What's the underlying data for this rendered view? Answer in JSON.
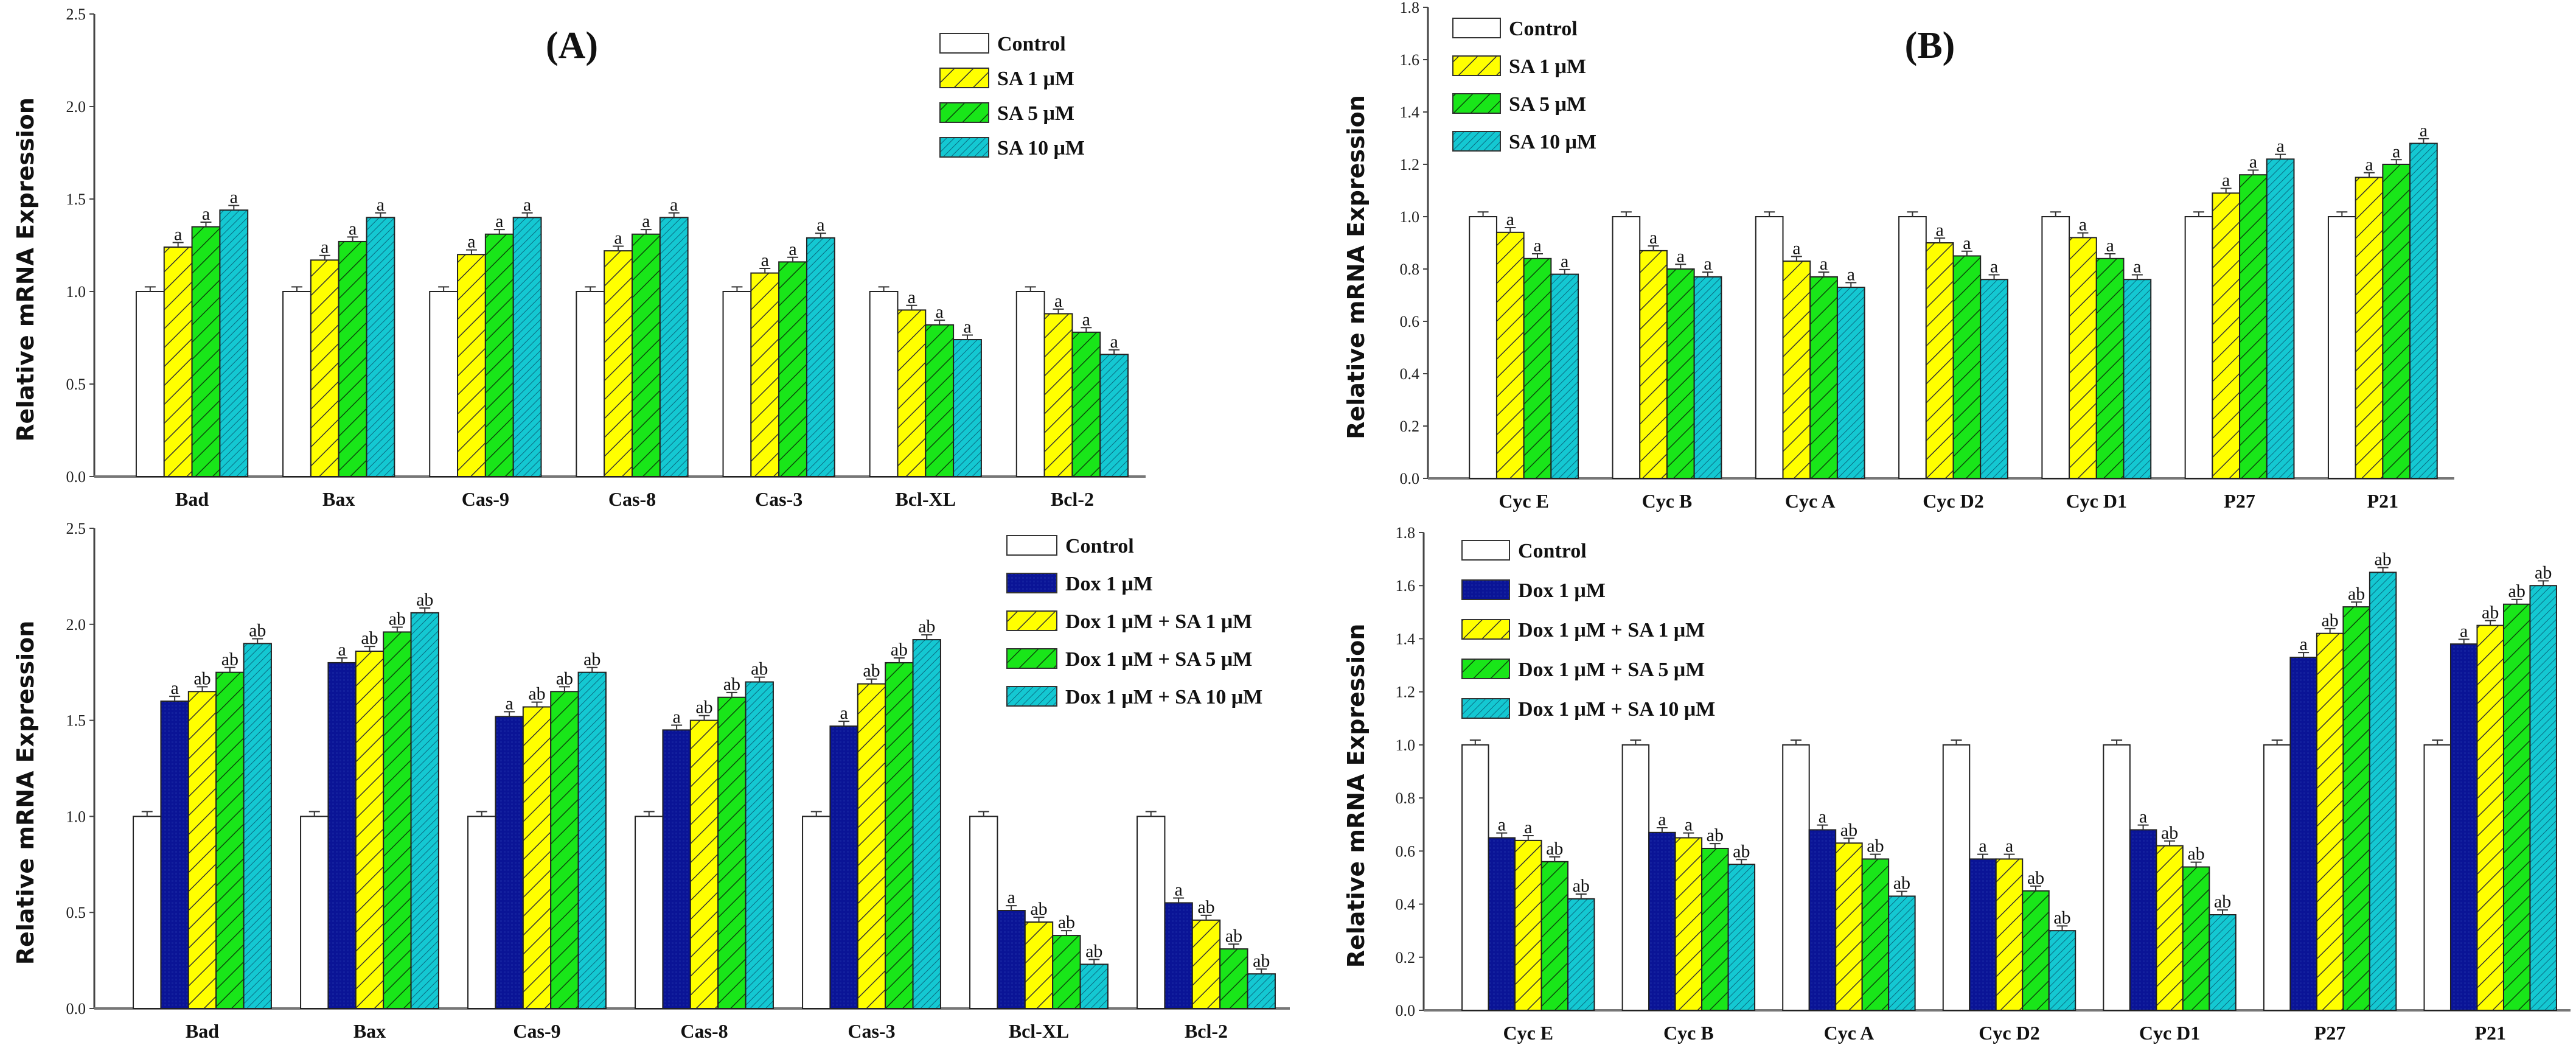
{
  "colors": {
    "control": "#ffffff",
    "dox": "#0a1496",
    "sa1": "#ffff00",
    "sa5": "#19e619",
    "sa10": "#14c8d2"
  },
  "chart_data": [
    {
      "type": "bar",
      "panel": "A-top",
      "title": "(A)",
      "ylabel": "Relative mRNA Expression",
      "xlabel": "",
      "ylim": [
        0,
        2.5
      ],
      "yticks": [
        "0.0",
        "0.5",
        "1.0",
        "1.5",
        "2.0",
        "2.5"
      ],
      "legend_position": "top-right",
      "categories": [
        "Bad",
        "Bax",
        "Cas-9",
        "Cas-8",
        "Cas-3",
        "Bcl-XL",
        "Bcl-2"
      ],
      "series": [
        {
          "name": "Control",
          "color_key": "control",
          "values": [
            1.0,
            1.0,
            1.0,
            1.0,
            1.0,
            1.0,
            1.0
          ],
          "labels": [
            "",
            "",
            "",
            "",
            "",
            "",
            ""
          ]
        },
        {
          "name": "SA 1 μM",
          "color_key": "sa1",
          "values": [
            1.24,
            1.17,
            1.2,
            1.22,
            1.1,
            0.9,
            0.88
          ],
          "labels": [
            "a",
            "a",
            "a",
            "a",
            "a",
            "a",
            "a"
          ]
        },
        {
          "name": "SA 5 μM",
          "color_key": "sa5",
          "values": [
            1.35,
            1.27,
            1.31,
            1.31,
            1.16,
            0.82,
            0.78
          ],
          "labels": [
            "a",
            "a",
            "a",
            "a",
            "a",
            "a",
            "a"
          ]
        },
        {
          "name": "SA 10 μM",
          "color_key": "sa10",
          "values": [
            1.44,
            1.4,
            1.4,
            1.4,
            1.29,
            0.74,
            0.66
          ],
          "labels": [
            "a",
            "a",
            "a",
            "a",
            "a",
            "a",
            "a"
          ]
        }
      ]
    },
    {
      "type": "bar",
      "panel": "A-bottom",
      "title": "",
      "ylabel": "Relative mRNA Expression",
      "xlabel": "",
      "ylim": [
        0,
        2.5
      ],
      "yticks": [
        "0.0",
        "0.5",
        "1.0",
        "1.5",
        "2.0",
        "2.5"
      ],
      "legend_position": "top-right",
      "categories": [
        "Bad",
        "Bax",
        "Cas-9",
        "Cas-8",
        "Cas-3",
        "Bcl-XL",
        "Bcl-2"
      ],
      "series": [
        {
          "name": "Control",
          "color_key": "control",
          "values": [
            1.0,
            1.0,
            1.0,
            1.0,
            1.0,
            1.0,
            1.0
          ],
          "labels": [
            "",
            "",
            "",
            "",
            "",
            "",
            ""
          ]
        },
        {
          "name": "Dox 1 μM",
          "color_key": "dox",
          "values": [
            1.6,
            1.8,
            1.52,
            1.45,
            1.47,
            0.51,
            0.55
          ],
          "labels": [
            "a",
            "a",
            "a",
            "a",
            "a",
            "a",
            "a"
          ]
        },
        {
          "name": "Dox 1 μM + SA 1 μM",
          "color_key": "sa1",
          "values": [
            1.65,
            1.86,
            1.57,
            1.5,
            1.69,
            0.45,
            0.46
          ],
          "labels": [
            "ab",
            "ab",
            "ab",
            "ab",
            "ab",
            "ab",
            "ab"
          ]
        },
        {
          "name": "Dox 1 μM + SA 5 μM",
          "color_key": "sa5",
          "values": [
            1.75,
            1.96,
            1.65,
            1.62,
            1.8,
            0.38,
            0.31
          ],
          "labels": [
            "ab",
            "ab",
            "ab",
            "ab",
            "ab",
            "ab",
            "ab"
          ]
        },
        {
          "name": "Dox 1 μM + SA 10 μM",
          "color_key": "sa10",
          "values": [
            1.9,
            2.06,
            1.75,
            1.7,
            1.92,
            0.23,
            0.18
          ],
          "labels": [
            "ab",
            "ab",
            "ab",
            "ab",
            "ab",
            "ab",
            "ab"
          ]
        }
      ]
    },
    {
      "type": "bar",
      "panel": "B-top",
      "title": "(B)",
      "ylabel": "Relative mRNA Expression",
      "xlabel": "",
      "ylim": [
        0,
        1.8
      ],
      "yticks": [
        "0.0",
        "0.2",
        "0.4",
        "0.6",
        "0.8",
        "1.0",
        "1.2",
        "1.4",
        "1.6",
        "1.8"
      ],
      "legend_position": "top-left",
      "categories": [
        "Cyc E",
        "Cyc B",
        "Cyc A",
        "Cyc D2",
        "Cyc D1",
        "P27",
        "P21"
      ],
      "series": [
        {
          "name": "Control",
          "color_key": "control",
          "values": [
            1.0,
            1.0,
            1.0,
            1.0,
            1.0,
            1.0,
            1.0
          ],
          "labels": [
            "",
            "",
            "",
            "",
            "",
            "",
            ""
          ]
        },
        {
          "name": "SA 1 μM",
          "color_key": "sa1",
          "values": [
            0.94,
            0.87,
            0.83,
            0.9,
            0.92,
            1.09,
            1.15
          ],
          "labels": [
            "a",
            "a",
            "a",
            "a",
            "a",
            "a",
            "a"
          ]
        },
        {
          "name": "SA 5 μM",
          "color_key": "sa5",
          "values": [
            0.84,
            0.8,
            0.77,
            0.85,
            0.84,
            1.16,
            1.2
          ],
          "labels": [
            "a",
            "a",
            "a",
            "a",
            "a",
            "a",
            "a"
          ]
        },
        {
          "name": "SA 10 μM",
          "color_key": "sa10",
          "values": [
            0.78,
            0.77,
            0.73,
            0.76,
            0.76,
            1.22,
            1.28
          ],
          "labels": [
            "a",
            "a",
            "a",
            "a",
            "a",
            "a",
            "a"
          ]
        }
      ]
    },
    {
      "type": "bar",
      "panel": "B-bottom",
      "title": "",
      "ylabel": "Relative mRNA Expression",
      "xlabel": "",
      "ylim": [
        0,
        1.8
      ],
      "yticks": [
        "0.0",
        "0.2",
        "0.4",
        "0.6",
        "0.8",
        "1.0",
        "1.2",
        "1.4",
        "1.6",
        "1.8"
      ],
      "legend_position": "top-left",
      "categories": [
        "Cyc E",
        "Cyc B",
        "Cyc A",
        "Cyc D2",
        "Cyc D1",
        "P27",
        "P21"
      ],
      "series": [
        {
          "name": "Control",
          "color_key": "control",
          "values": [
            1.0,
            1.0,
            1.0,
            1.0,
            1.0,
            1.0,
            1.0
          ],
          "labels": [
            "",
            "",
            "",
            "",
            "",
            "",
            ""
          ]
        },
        {
          "name": "Dox 1 μM",
          "color_key": "dox",
          "values": [
            0.65,
            0.67,
            0.68,
            0.57,
            0.68,
            1.33,
            1.38
          ],
          "labels": [
            "a",
            "a",
            "a",
            "a",
            "a",
            "a",
            "a"
          ]
        },
        {
          "name": "Dox 1 μM + SA 1 μM",
          "color_key": "sa1",
          "values": [
            0.64,
            0.65,
            0.63,
            0.57,
            0.62,
            1.42,
            1.45
          ],
          "labels": [
            "a",
            "a",
            "ab",
            "a",
            "ab",
            "ab",
            "ab"
          ]
        },
        {
          "name": "Dox 1 μM + SA 5 μM",
          "color_key": "sa5",
          "values": [
            0.56,
            0.61,
            0.57,
            0.45,
            0.54,
            1.52,
            1.53
          ],
          "labels": [
            "ab",
            "ab",
            "ab",
            "ab",
            "ab",
            "ab",
            "ab"
          ]
        },
        {
          "name": "Dox 1 μM + SA 10 μM",
          "color_key": "sa10",
          "values": [
            0.42,
            0.55,
            0.43,
            0.3,
            0.36,
            1.65,
            1.6
          ],
          "labels": [
            "ab",
            "ab",
            "ab",
            "ab",
            "ab",
            "ab",
            "ab"
          ]
        }
      ]
    }
  ]
}
